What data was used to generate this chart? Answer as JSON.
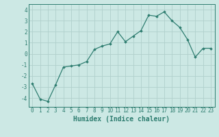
{
  "x": [
    0,
    1,
    2,
    3,
    4,
    5,
    6,
    7,
    8,
    9,
    10,
    11,
    12,
    13,
    14,
    15,
    16,
    17,
    18,
    19,
    20,
    21,
    22,
    23
  ],
  "y": [
    -2.7,
    -4.1,
    -4.3,
    -2.8,
    -1.2,
    -1.1,
    -1.0,
    -0.7,
    0.4,
    0.7,
    0.9,
    2.0,
    1.1,
    1.6,
    2.1,
    3.5,
    3.4,
    3.8,
    3.0,
    2.4,
    1.3,
    -0.3,
    0.5,
    0.5
  ],
  "line_color": "#2e7d70",
  "marker": "D",
  "marker_size": 1.8,
  "line_width": 0.9,
  "bg_color": "#cce8e4",
  "grid_color": "#b0d0cc",
  "xlabel": "Humidex (Indice chaleur)",
  "xlim": [
    -0.5,
    23.5
  ],
  "ylim": [
    -4.8,
    4.5
  ],
  "yticks": [
    -4,
    -3,
    -2,
    -1,
    0,
    1,
    2,
    3,
    4
  ],
  "xticks": [
    0,
    1,
    2,
    3,
    4,
    5,
    6,
    7,
    8,
    9,
    10,
    11,
    12,
    13,
    14,
    15,
    16,
    17,
    18,
    19,
    20,
    21,
    22,
    23
  ],
  "tick_fontsize": 5.5,
  "label_fontsize": 7.0
}
